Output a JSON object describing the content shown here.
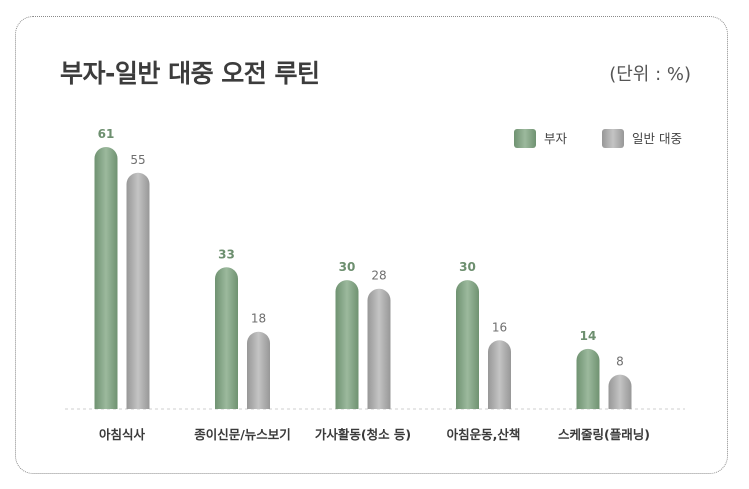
{
  "chart_data": {
    "type": "bar",
    "title": "부자-일반 대중 오전 루틴",
    "unit_label": "(단위 : %)",
    "categories": [
      "아침식사",
      "종이신문/뉴스보기",
      "가사활동(청소 등)",
      "아침운동,산책",
      "스케줄링(플래닝)"
    ],
    "series": [
      {
        "name": "부자",
        "values": [
          61,
          33,
          30,
          30,
          14
        ],
        "color": "#7f9f81"
      },
      {
        "name": "일반 대중",
        "values": [
          55,
          18,
          28,
          16,
          8
        ],
        "color": "#a9a9a9"
      }
    ],
    "ylim": [
      0,
      65
    ],
    "legend_position": "top-right",
    "grid": false
  }
}
